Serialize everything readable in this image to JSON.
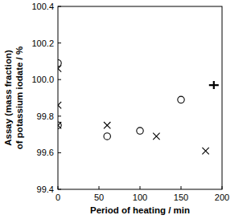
{
  "chart_data": {
    "type": "scatter",
    "xlabel": "Period of heating / min",
    "ylabel": "Assay (mass fraction) of potassium iodate / %",
    "xlim": [
      0,
      200
    ],
    "xticks": [
      0,
      50,
      100,
      150,
      200
    ],
    "ylim": [
      99.4,
      100.4
    ],
    "yticks": [
      99.4,
      99.6,
      99.8,
      {
        "value": 100,
        "label": "100.0"
      },
      100.2,
      100.4
    ],
    "grid": false,
    "series": [
      {
        "marker": "circle",
        "color": "#000000",
        "x": [
          0,
          0,
          60,
          100,
          150
        ],
        "values": [
          100.09,
          99.75,
          99.69,
          99.72,
          99.89
        ]
      },
      {
        "marker": "x",
        "color": "#000000",
        "x": [
          0,
          0,
          0,
          60,
          120,
          180
        ],
        "values": [
          100.06,
          99.86,
          99.75,
          99.75,
          99.69,
          99.61
        ]
      },
      {
        "marker": "plus",
        "color": "#000000",
        "x": [
          190
        ],
        "values": [
          99.97
        ]
      }
    ]
  }
}
